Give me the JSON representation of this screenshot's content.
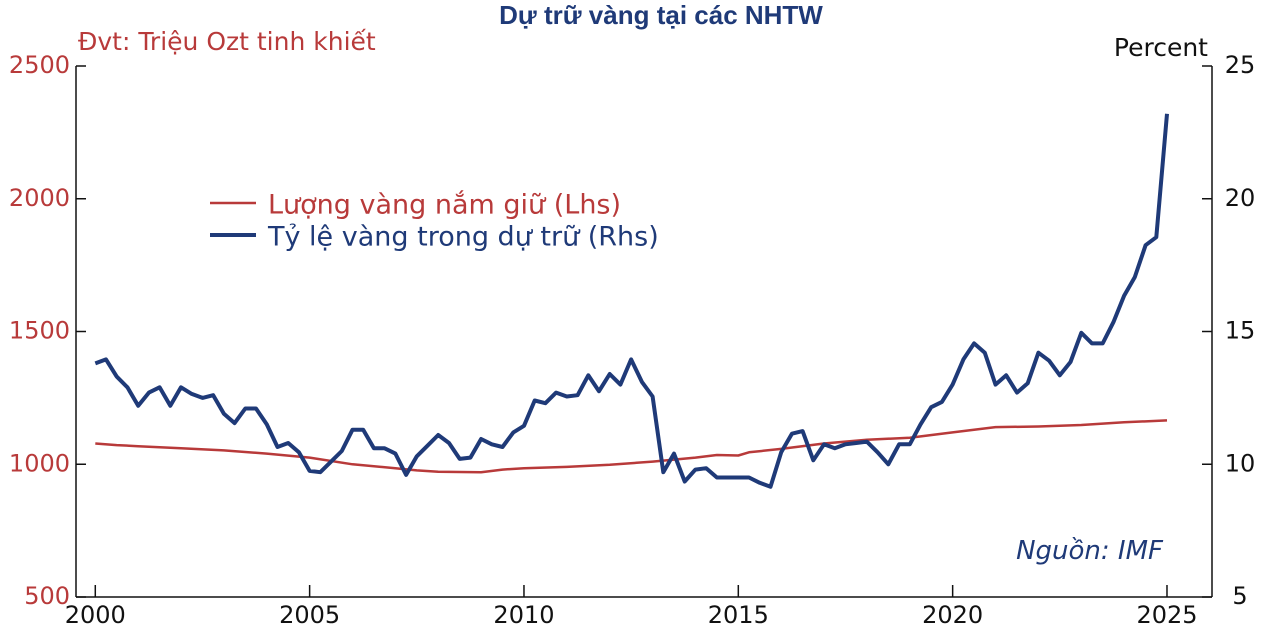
{
  "chart_data": {
    "type": "line",
    "title": "Dự trữ vàng tại các NHTW",
    "left_unit_label": "Đvt: Triệu Ozt tinh khiết",
    "right_unit_label": "Percent",
    "source": "Nguồn: IMF",
    "x_ticks": [
      "2000",
      "2005",
      "2010",
      "2015",
      "2020",
      "2025"
    ],
    "x_range": [
      1999.55,
      2026.05
    ],
    "y_left_ticks": [
      "500",
      "1000",
      "1500",
      "2000",
      "2500"
    ],
    "y_left_range": [
      500,
      2500
    ],
    "y_right_ticks": [
      "5",
      "10",
      "15",
      "20",
      "25"
    ],
    "y_right_range": [
      5,
      25
    ],
    "grid": false,
    "legend_position": "upper-left",
    "colors": {
      "lhs": "#b83a3a",
      "rhs": "#1f3a78",
      "title": "#1f3a78"
    },
    "series": [
      {
        "name": "Lượng vàng nắm giữ (Lhs)",
        "axis": "left",
        "x": [
          2000.0,
          2000.5,
          2001.0,
          2002.0,
          2003.0,
          2004.0,
          2005.0,
          2006.0,
          2007.0,
          2007.5,
          2008.0,
          2009.0,
          2009.5,
          2010.0,
          2011.0,
          2012.0,
          2013.0,
          2014.0,
          2014.5,
          2015.0,
          2015.25,
          2016.0,
          2017.0,
          2018.0,
          2019.0,
          2020.0,
          2021.0,
          2022.0,
          2023.0,
          2024.0,
          2025.0
        ],
        "values": [
          1078,
          1072,
          1068,
          1060,
          1052,
          1040,
          1025,
          1000,
          985,
          977,
          972,
          970,
          980,
          985,
          990,
          998,
          1010,
          1025,
          1035,
          1033,
          1045,
          1058,
          1078,
          1092,
          1100,
          1120,
          1140,
          1142,
          1148,
          1158,
          1165
        ]
      },
      {
        "name": "Tỷ lệ vàng trong dự trữ (Rhs)",
        "axis": "right",
        "x": [
          2000.0,
          2000.25,
          2000.5,
          2000.75,
          2001.0,
          2001.25,
          2001.5,
          2001.75,
          2002.0,
          2002.25,
          2002.5,
          2002.75,
          2003.0,
          2003.25,
          2003.5,
          2003.75,
          2004.0,
          2004.25,
          2004.5,
          2004.75,
          2005.0,
          2005.25,
          2005.5,
          2005.75,
          2006.0,
          2006.25,
          2006.5,
          2006.75,
          2007.0,
          2007.25,
          2007.5,
          2007.75,
          2008.0,
          2008.25,
          2008.5,
          2008.75,
          2009.0,
          2009.25,
          2009.5,
          2009.75,
          2010.0,
          2010.25,
          2010.5,
          2010.75,
          2011.0,
          2011.25,
          2011.5,
          2011.75,
          2012.0,
          2012.25,
          2012.5,
          2012.75,
          2013.0,
          2013.25,
          2013.5,
          2013.75,
          2014.0,
          2014.25,
          2014.5,
          2014.75,
          2015.0,
          2015.25,
          2015.5,
          2015.75,
          2016.0,
          2016.25,
          2016.5,
          2016.75,
          2017.0,
          2017.25,
          2017.5,
          2017.75,
          2018.0,
          2018.25,
          2018.5,
          2018.75,
          2019.0,
          2019.25,
          2019.5,
          2019.75,
          2020.0,
          2020.25,
          2020.5,
          2020.75,
          2021.0,
          2021.25,
          2021.5,
          2021.75,
          2022.0,
          2022.25,
          2022.5,
          2022.75,
          2023.0,
          2023.25,
          2023.5,
          2023.75,
          2024.0,
          2024.25,
          2024.5,
          2024.75,
          2025.0
        ],
        "values": [
          13.8,
          13.95,
          13.3,
          12.9,
          12.2,
          12.7,
          12.9,
          12.2,
          12.9,
          12.65,
          12.5,
          12.6,
          11.9,
          11.55,
          12.1,
          12.1,
          11.5,
          10.65,
          10.8,
          10.45,
          9.75,
          9.7,
          10.1,
          10.5,
          11.3,
          11.3,
          10.6,
          10.6,
          10.4,
          9.6,
          10.3,
          10.7,
          11.1,
          10.8,
          10.2,
          10.25,
          10.95,
          10.75,
          10.65,
          11.2,
          11.45,
          12.4,
          12.3,
          12.7,
          12.55,
          12.6,
          13.35,
          12.75,
          13.4,
          13.0,
          13.95,
          13.1,
          12.55,
          9.7,
          10.4,
          9.35,
          9.8,
          9.85,
          9.5,
          9.5,
          9.5,
          9.5,
          9.3,
          9.15,
          10.45,
          11.15,
          11.25,
          10.15,
          10.75,
          10.6,
          10.75,
          10.8,
          10.85,
          10.45,
          10.0,
          10.75,
          10.75,
          11.5,
          12.15,
          12.35,
          13.0,
          13.95,
          14.55,
          14.2,
          13.0,
          13.35,
          12.7,
          13.05,
          14.2,
          13.9,
          13.35,
          13.85,
          14.95,
          14.55,
          14.55,
          15.35,
          16.35,
          17.05,
          18.25,
          18.55,
          23.2
        ]
      }
    ]
  }
}
